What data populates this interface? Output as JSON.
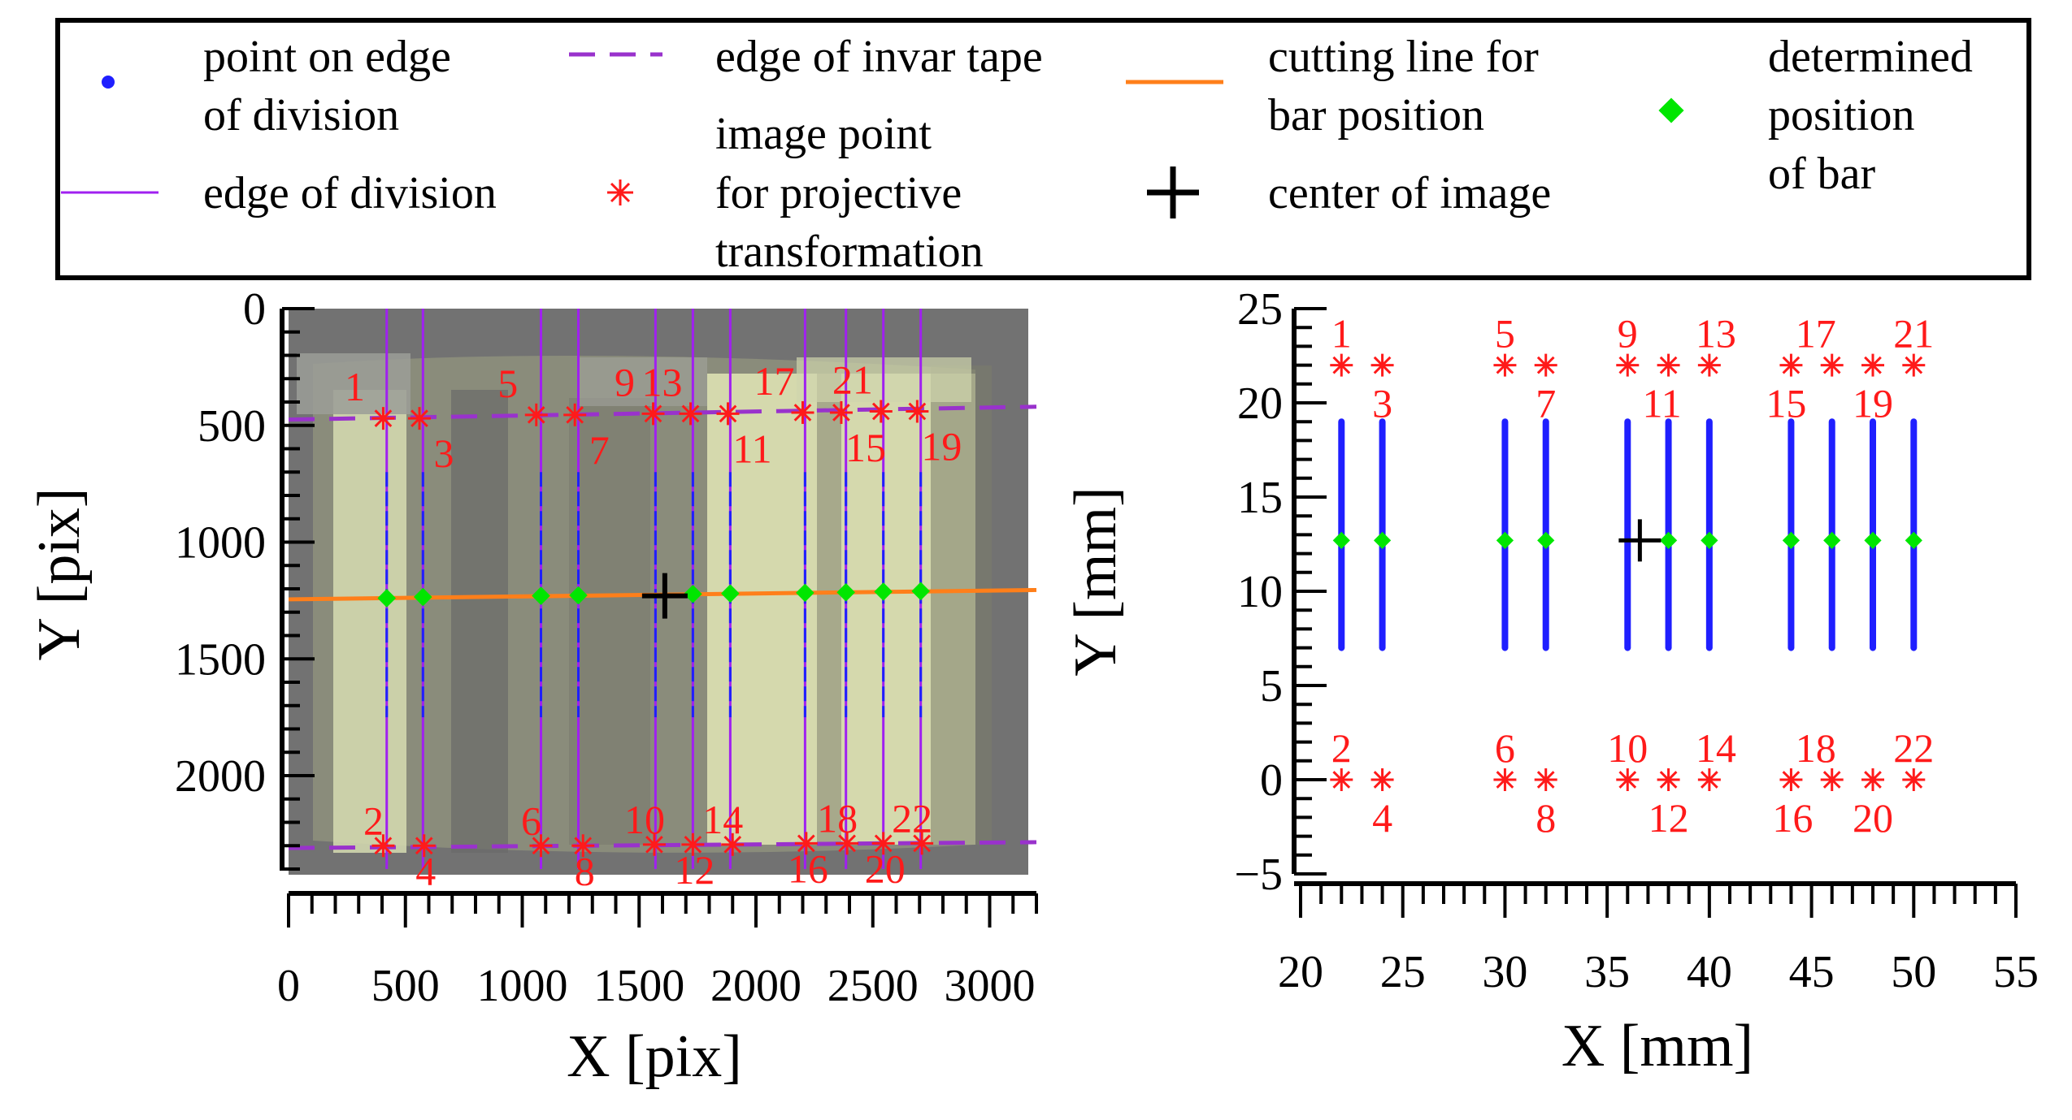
{
  "legend": {
    "entries": [
      {
        "id": "point-on-edge",
        "lines": [
          "point on edge",
          "of division"
        ],
        "color": "#1f1fff",
        "marker": "dot"
      },
      {
        "id": "edge-of-division",
        "lines": [
          "edge of division"
        ],
        "color": "#a020f0",
        "marker": "line"
      },
      {
        "id": "edge-invar-tape",
        "lines": [
          "edge of invar tape"
        ],
        "color": "#9932cc",
        "marker": "dashed-line"
      },
      {
        "id": "image-point",
        "lines": [
          "image point",
          "for projective",
          "transformation"
        ],
        "color": "#ff1a1a",
        "marker": "asterisk"
      },
      {
        "id": "cutting-line",
        "lines": [
          "cutting line for",
          "bar position"
        ],
        "color": "#ff7f1a",
        "marker": "line"
      },
      {
        "id": "center-of-image",
        "lines": [
          "center of image"
        ],
        "color": "#000000",
        "marker": "plus"
      },
      {
        "id": "determined-position",
        "lines": [
          "determined",
          "position",
          "of bar"
        ],
        "color": "#00e600",
        "marker": "diamond"
      }
    ]
  },
  "chart_data": [
    {
      "id": "left",
      "type": "scatter",
      "title": "",
      "xlabel": "X [pix]",
      "ylabel": "Y [pix]",
      "xlim": [
        0,
        3200
      ],
      "ylim": [
        2400,
        0
      ],
      "xticks": [
        0,
        500,
        1000,
        1500,
        2000,
        2500,
        3000
      ],
      "xtick_labels": [
        "0",
        "500",
        "1000",
        "1500",
        "2000",
        "2500",
        "3000"
      ],
      "yticks": [
        0,
        500,
        1000,
        1500,
        2000
      ],
      "ytick_labels": [
        "0",
        "500",
        "1000",
        "1500",
        "2000"
      ],
      "background": "image of invar tape with divisions",
      "division_lines_x": [
        420,
        575,
        1080,
        1240,
        1570,
        1730,
        1890,
        2210,
        2385,
        2545,
        2705
      ],
      "invar_edge_top": {
        "x": [
          0,
          3200
        ],
        "y": [
          475,
          420
        ]
      },
      "invar_edge_bottom": {
        "x": [
          0,
          3200
        ],
        "y": [
          2310,
          2285
        ]
      },
      "cutting_line": {
        "x": [
          0,
          3200
        ],
        "y": [
          1245,
          1205
        ]
      },
      "center_of_image": {
        "x": 1610,
        "y": 1230
      },
      "bar_positions": {
        "x": [
          420,
          575,
          1080,
          1240,
          1730,
          1890,
          2210,
          2385,
          2545,
          2705
        ],
        "y": [
          1240,
          1235,
          1230,
          1228,
          1222,
          1220,
          1217,
          1215,
          1212,
          1210
        ]
      },
      "projective_points": [
        {
          "label": "1",
          "x": 405,
          "y": 470
        },
        {
          "label": "2",
          "x": 405,
          "y": 2300
        },
        {
          "label": "3",
          "x": 560,
          "y": 470
        },
        {
          "label": "4",
          "x": 580,
          "y": 2300
        },
        {
          "label": "5",
          "x": 1060,
          "y": 455
        },
        {
          "label": "6",
          "x": 1080,
          "y": 2300
        },
        {
          "label": "7",
          "x": 1225,
          "y": 455
        },
        {
          "label": "8",
          "x": 1260,
          "y": 2300
        },
        {
          "label": "9",
          "x": 1560,
          "y": 450
        },
        {
          "label": "10",
          "x": 1565,
          "y": 2295
        },
        {
          "label": "11",
          "x": 1880,
          "y": 450
        },
        {
          "label": "12",
          "x": 1730,
          "y": 2295
        },
        {
          "label": "13",
          "x": 1720,
          "y": 450
        },
        {
          "label": "14",
          "x": 1900,
          "y": 2295
        },
        {
          "label": "15",
          "x": 2365,
          "y": 445
        },
        {
          "label": "16",
          "x": 2215,
          "y": 2290
        },
        {
          "label": "17",
          "x": 2200,
          "y": 445
        },
        {
          "label": "18",
          "x": 2390,
          "y": 2290
        },
        {
          "label": "19",
          "x": 2690,
          "y": 440
        },
        {
          "label": "20",
          "x": 2545,
          "y": 2290
        },
        {
          "label": "21",
          "x": 2535,
          "y": 440
        },
        {
          "label": "22",
          "x": 2710,
          "y": 2290
        }
      ]
    },
    {
      "id": "right",
      "type": "scatter",
      "title": "",
      "xlabel": "X [mm]",
      "ylabel": "Y [mm]",
      "xlim": [
        20,
        55
      ],
      "ylim": [
        -5,
        25
      ],
      "xticks": [
        20,
        25,
        30,
        35,
        40,
        45,
        50,
        55
      ],
      "xtick_labels": [
        "20",
        "25",
        "30",
        "35",
        "40",
        "45",
        "50",
        "55"
      ],
      "yticks": [
        -5,
        0,
        5,
        10,
        15,
        20,
        25
      ],
      "ytick_labels": [
        "−5",
        "0",
        "5",
        "10",
        "15",
        "20",
        "25"
      ],
      "division_edges": {
        "x": [
          22,
          24,
          30,
          32,
          36,
          38,
          40,
          44,
          46,
          48,
          50
        ],
        "y_from": 7,
        "y_to": 19
      },
      "center_of_image": {
        "x": 36.6,
        "y": 12.7
      },
      "bar_positions": {
        "x": [
          22,
          24,
          30,
          32,
          38,
          40,
          44,
          46,
          48,
          50
        ],
        "y": [
          12.7,
          12.7,
          12.7,
          12.7,
          12.7,
          12.7,
          12.7,
          12.7,
          12.7,
          12.7
        ]
      },
      "projective_points": [
        {
          "label": "1",
          "x": 22,
          "y": 22
        },
        {
          "label": "2",
          "x": 22,
          "y": 0
        },
        {
          "label": "3",
          "x": 24,
          "y": 22
        },
        {
          "label": "4",
          "x": 24,
          "y": 0
        },
        {
          "label": "5",
          "x": 30,
          "y": 22
        },
        {
          "label": "6",
          "x": 30,
          "y": 0
        },
        {
          "label": "7",
          "x": 32,
          "y": 22
        },
        {
          "label": "8",
          "x": 32,
          "y": 0
        },
        {
          "label": "9",
          "x": 36,
          "y": 22
        },
        {
          "label": "10",
          "x": 36,
          "y": 0
        },
        {
          "label": "11",
          "x": 38,
          "y": 22
        },
        {
          "label": "12",
          "x": 38,
          "y": 0
        },
        {
          "label": "13",
          "x": 40,
          "y": 22
        },
        {
          "label": "14",
          "x": 40,
          "y": 0
        },
        {
          "label": "15",
          "x": 44,
          "y": 22
        },
        {
          "label": "16",
          "x": 44,
          "y": 0
        },
        {
          "label": "17",
          "x": 46,
          "y": 22
        },
        {
          "label": "18",
          "x": 46,
          "y": 0
        },
        {
          "label": "19",
          "x": 48,
          "y": 22
        },
        {
          "label": "20",
          "x": 48,
          "y": 0
        },
        {
          "label": "21",
          "x": 50,
          "y": 22
        },
        {
          "label": "22",
          "x": 50,
          "y": 0
        }
      ]
    }
  ]
}
